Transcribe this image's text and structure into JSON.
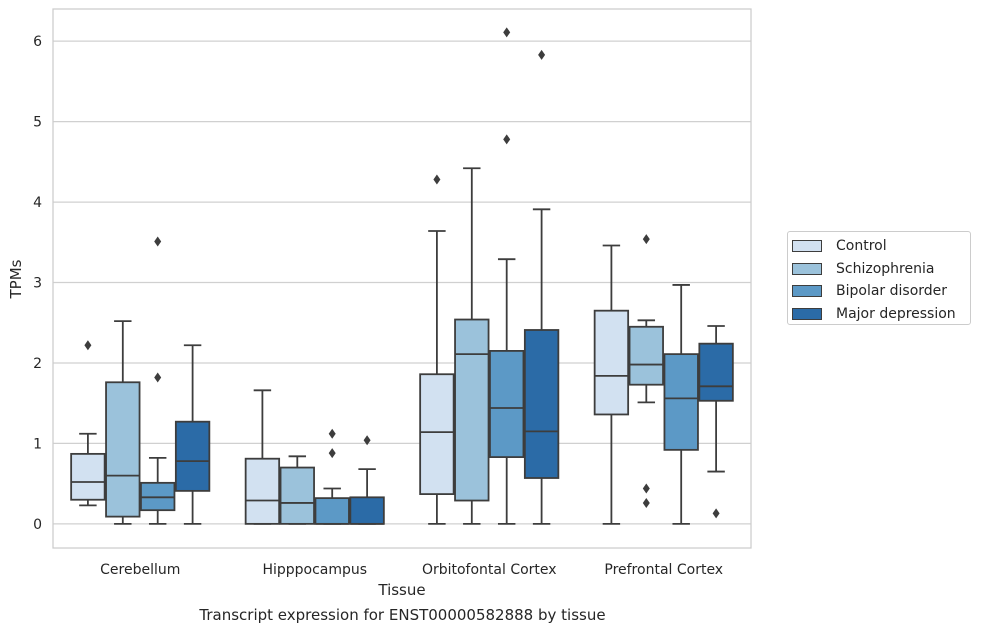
{
  "chart_data": {
    "type": "box",
    "caption": "Transcript expression for ENST00000582888 by tissue",
    "xlabel": "Tissue",
    "ylabel": "TPMs",
    "ylim": [
      -0.3,
      6.4
    ],
    "yticks": [
      0,
      1,
      2,
      3,
      4,
      5,
      6
    ],
    "grid": true,
    "legend_position": "right",
    "categories": [
      "Cerebellum",
      "Hipppocampus",
      "Orbitofontal Cortex",
      "Prefrontal Cortex"
    ],
    "series": [
      {
        "name": "Control",
        "color": "#d2e1f1",
        "boxes": [
          {
            "min": 0.23,
            "q1": 0.3,
            "median": 0.52,
            "q3": 0.87,
            "max": 1.12,
            "outliers": [
              2.22
            ]
          },
          {
            "min": 0.0,
            "q1": 0.0,
            "median": 0.29,
            "q3": 0.81,
            "max": 1.66,
            "outliers": []
          },
          {
            "min": 0.0,
            "q1": 0.37,
            "median": 1.14,
            "q3": 1.86,
            "max": 3.64,
            "outliers": [
              4.28
            ]
          },
          {
            "min": 0.0,
            "q1": 1.36,
            "median": 1.84,
            "q3": 2.65,
            "max": 3.46,
            "outliers": []
          }
        ]
      },
      {
        "name": "Schizophrenia",
        "color": "#9bc2db",
        "boxes": [
          {
            "min": 0.0,
            "q1": 0.09,
            "median": 0.6,
            "q3": 1.76,
            "max": 2.52,
            "outliers": []
          },
          {
            "min": 0.0,
            "q1": 0.0,
            "median": 0.26,
            "q3": 0.7,
            "max": 0.84,
            "outliers": []
          },
          {
            "min": 0.0,
            "q1": 0.29,
            "median": 2.11,
            "q3": 2.54,
            "max": 4.42,
            "outliers": []
          },
          {
            "min": 1.51,
            "q1": 1.73,
            "median": 1.98,
            "q3": 2.45,
            "max": 2.53,
            "outliers": [
              0.44,
              0.26,
              3.54
            ]
          }
        ]
      },
      {
        "name": "Bipolar disorder",
        "color": "#5c99c6",
        "boxes": [
          {
            "min": 0.0,
            "q1": 0.17,
            "median": 0.33,
            "q3": 0.51,
            "max": 0.82,
            "outliers": [
              1.82,
              3.51
            ]
          },
          {
            "min": 0.0,
            "q1": 0.0,
            "median": 0.0,
            "q3": 0.32,
            "max": 0.44,
            "outliers": [
              0.88,
              1.12
            ]
          },
          {
            "min": 0.0,
            "q1": 0.83,
            "median": 1.44,
            "q3": 2.15,
            "max": 3.29,
            "outliers": [
              4.78,
              6.11
            ]
          },
          {
            "min": 0.0,
            "q1": 0.92,
            "median": 1.56,
            "q3": 2.11,
            "max": 2.97,
            "outliers": []
          }
        ]
      },
      {
        "name": "Major depression",
        "color": "#2b6ba7",
        "boxes": [
          {
            "min": 0.0,
            "q1": 0.41,
            "median": 0.78,
            "q3": 1.27,
            "max": 2.22,
            "outliers": []
          },
          {
            "min": 0.0,
            "q1": 0.0,
            "median": 0.0,
            "q3": 0.33,
            "max": 0.68,
            "outliers": [
              1.04
            ]
          },
          {
            "min": 0.0,
            "q1": 0.57,
            "median": 1.15,
            "q3": 2.41,
            "max": 3.91,
            "outliers": [
              5.83
            ]
          },
          {
            "min": 0.65,
            "q1": 1.53,
            "median": 1.71,
            "q3": 2.24,
            "max": 2.46,
            "outliers": [
              0.13
            ]
          }
        ]
      }
    ]
  }
}
